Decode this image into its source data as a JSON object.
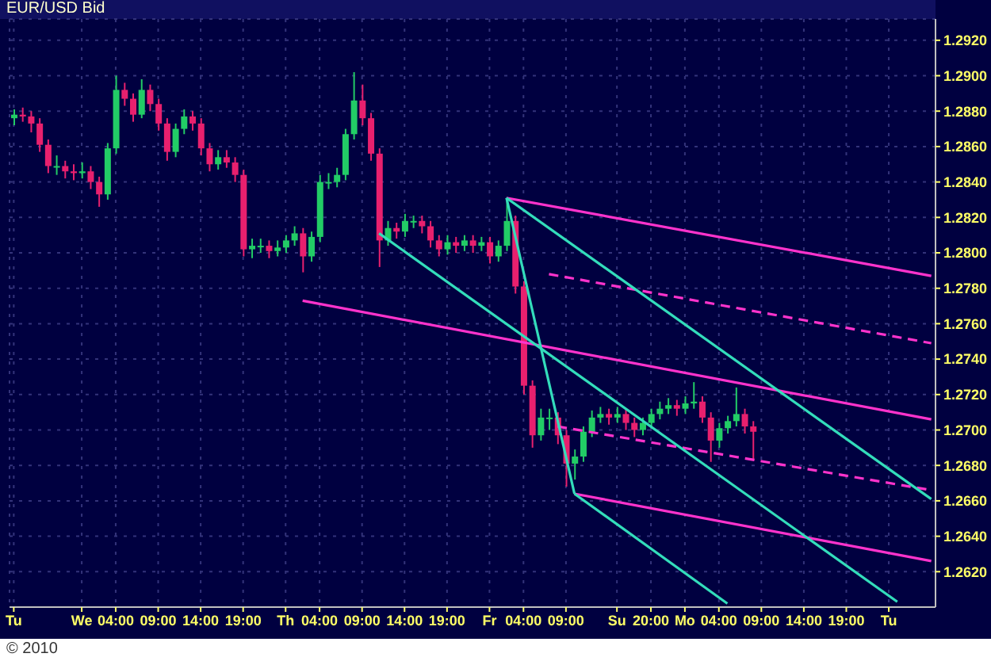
{
  "chart_data": {
    "type": "candlestick",
    "title": "EUR/USD Bid",
    "categories": [
      "Tu",
      null,
      null,
      null,
      null,
      null,
      null,
      null,
      "We",
      null,
      null,
      null,
      "04:00",
      null,
      null,
      null,
      null,
      "09:00",
      null,
      null,
      null,
      null,
      "14:00",
      null,
      null,
      null,
      null,
      "19:00",
      null,
      null,
      null,
      null,
      "Th",
      null,
      null,
      null,
      "04:00",
      null,
      null,
      null,
      null,
      "09:00",
      null,
      null,
      null,
      null,
      "14:00",
      null,
      null,
      null,
      null,
      "19:00",
      null,
      null,
      null,
      null,
      "Fr",
      null,
      null,
      null,
      "04:00",
      null,
      null,
      null,
      null,
      "09:00",
      null,
      null,
      null,
      null,
      null,
      "Su",
      null,
      null,
      null,
      "20:00",
      null,
      null,
      null,
      "Mo",
      null,
      null,
      null,
      "04:00",
      null,
      null,
      null,
      null,
      "09:00",
      null,
      null,
      null,
      null,
      "14:00",
      null,
      null,
      null,
      null,
      "19:00",
      null,
      null,
      null,
      null,
      "Tu",
      null,
      null,
      null,
      null,
      null
    ],
    "ohlc": [
      [
        1.2876,
        1.2881,
        1.2872,
        1.2878
      ],
      [
        1.2878,
        1.2882,
        1.2874,
        1.2877
      ],
      [
        1.2877,
        1.288,
        1.2868,
        1.2873
      ],
      [
        1.2873,
        1.2876,
        1.2857,
        1.2861
      ],
      [
        1.2861,
        1.2864,
        1.2845,
        1.2849
      ],
      [
        1.2849,
        1.2855,
        1.2844,
        1.2849
      ],
      [
        1.2849,
        1.2852,
        1.2842,
        1.2846
      ],
      [
        1.2846,
        1.285,
        1.2841,
        1.2845
      ],
      [
        1.2845,
        1.2851,
        1.2842,
        1.2846
      ],
      [
        1.2846,
        1.2849,
        1.2836,
        1.284
      ],
      [
        1.284,
        1.2843,
        1.2826,
        1.2833
      ],
      [
        1.2833,
        1.2862,
        1.283,
        1.2859
      ],
      [
        1.2859,
        1.29,
        1.2856,
        1.2892
      ],
      [
        1.2892,
        1.2896,
        1.2883,
        1.2887
      ],
      [
        1.2887,
        1.289,
        1.2874,
        1.2878
      ],
      [
        1.2878,
        1.2898,
        1.2876,
        1.2892
      ],
      [
        1.2892,
        1.2895,
        1.288,
        1.2884
      ],
      [
        1.2884,
        1.2887,
        1.2869,
        1.2873
      ],
      [
        1.2873,
        1.2876,
        1.2852,
        1.2857
      ],
      [
        1.2857,
        1.2873,
        1.2854,
        1.287
      ],
      [
        1.287,
        1.2881,
        1.2867,
        1.2877
      ],
      [
        1.2877,
        1.288,
        1.2869,
        1.2873
      ],
      [
        1.2873,
        1.2876,
        1.2855,
        1.2859
      ],
      [
        1.2859,
        1.2862,
        1.2846,
        1.285
      ],
      [
        1.285,
        1.2858,
        1.2847,
        1.2854
      ],
      [
        1.2854,
        1.2858,
        1.2848,
        1.2851
      ],
      [
        1.2851,
        1.2854,
        1.284,
        1.2844
      ],
      [
        1.2844,
        1.2847,
        1.2798,
        1.2802
      ],
      [
        1.2802,
        1.2808,
        1.2797,
        1.2804
      ],
      [
        1.2804,
        1.2808,
        1.28,
        1.2804
      ],
      [
        1.2804,
        1.2807,
        1.2797,
        1.2801
      ],
      [
        1.2801,
        1.2807,
        1.2798,
        1.2803
      ],
      [
        1.2803,
        1.281,
        1.28,
        1.2807
      ],
      [
        1.2807,
        1.2815,
        1.2804,
        1.2811
      ],
      [
        1.2811,
        1.2814,
        1.2789,
        1.2798
      ],
      [
        1.2798,
        1.2812,
        1.2795,
        1.2809
      ],
      [
        1.2809,
        1.2844,
        1.2806,
        1.284
      ],
      [
        1.284,
        1.2845,
        1.2836,
        1.284
      ],
      [
        1.284,
        1.2848,
        1.2837,
        1.2844
      ],
      [
        1.2844,
        1.287,
        1.2841,
        1.2867
      ],
      [
        1.2867,
        1.2902,
        1.2864,
        1.2886
      ],
      [
        1.2886,
        1.2895,
        1.2872,
        1.2876
      ],
      [
        1.2876,
        1.2879,
        1.2852,
        1.2856
      ],
      [
        1.2856,
        1.2859,
        1.2792,
        1.2807
      ],
      [
        1.2807,
        1.2818,
        1.2804,
        1.2814
      ],
      [
        1.2814,
        1.2817,
        1.2808,
        1.2812
      ],
      [
        1.2812,
        1.2822,
        1.2809,
        1.2818
      ],
      [
        1.2818,
        1.2821,
        1.2814,
        1.2818
      ],
      [
        1.2818,
        1.2821,
        1.2811,
        1.2815
      ],
      [
        1.2815,
        1.2818,
        1.2803,
        1.2807
      ],
      [
        1.2807,
        1.281,
        1.2798,
        1.2802
      ],
      [
        1.2802,
        1.281,
        1.2799,
        1.2806
      ],
      [
        1.2806,
        1.2809,
        1.28,
        1.2804
      ],
      [
        1.2804,
        1.281,
        1.2801,
        1.2807
      ],
      [
        1.2807,
        1.281,
        1.28,
        1.2804
      ],
      [
        1.2804,
        1.2809,
        1.2801,
        1.2806
      ],
      [
        1.2806,
        1.2809,
        1.2794,
        1.2798
      ],
      [
        1.2798,
        1.2807,
        1.2795,
        1.2804
      ],
      [
        1.2804,
        1.2831,
        1.2801,
        1.2818
      ],
      [
        1.2818,
        1.2821,
        1.2777,
        1.2781
      ],
      [
        1.2781,
        1.2784,
        1.272,
        1.2725
      ],
      [
        1.2725,
        1.2728,
        1.269,
        1.2697
      ],
      [
        1.2697,
        1.2712,
        1.2694,
        1.2707
      ],
      [
        1.2707,
        1.2712,
        1.27,
        1.2707
      ],
      [
        1.2707,
        1.271,
        1.2692,
        1.2697
      ],
      [
        1.2697,
        1.27,
        1.2668,
        1.2681
      ],
      [
        1.2681,
        1.2689,
        1.2672,
        1.2685
      ],
      [
        1.2685,
        1.2702,
        1.2682,
        1.2699
      ],
      [
        1.2699,
        1.2711,
        1.2696,
        1.2707
      ],
      [
        1.2707,
        1.2713,
        1.2704,
        1.2709
      ],
      [
        1.2709,
        1.2712,
        1.2703,
        1.2707
      ],
      [
        1.2707,
        1.2713,
        1.2704,
        1.2709
      ],
      [
        1.2709,
        1.2712,
        1.27,
        1.2704
      ],
      [
        1.2704,
        1.2707,
        1.2696,
        1.27
      ],
      [
        1.27,
        1.2707,
        1.2697,
        1.2704
      ],
      [
        1.2704,
        1.2712,
        1.2701,
        1.2709
      ],
      [
        1.2709,
        1.2716,
        1.2706,
        1.2712
      ],
      [
        1.2712,
        1.2718,
        1.2709,
        1.2714
      ],
      [
        1.2714,
        1.2717,
        1.2708,
        1.2712
      ],
      [
        1.2712,
        1.2719,
        1.2709,
        1.2715
      ],
      [
        1.2715,
        1.2727,
        1.2712,
        1.2716
      ],
      [
        1.2716,
        1.2719,
        1.2704,
        1.2707
      ],
      [
        1.2707,
        1.271,
        1.2682,
        1.2694
      ],
      [
        1.2694,
        1.2704,
        1.269,
        1.2701
      ],
      [
        1.2701,
        1.2708,
        1.2698,
        1.2705
      ],
      [
        1.2705,
        1.2724,
        1.2702,
        1.2709
      ],
      [
        1.2709,
        1.2712,
        1.2698,
        1.2702
      ],
      [
        1.2702,
        1.2705,
        1.2683,
        1.2699
      ],
      null,
      null,
      null,
      null,
      null,
      null,
      null,
      null,
      null,
      null,
      null,
      null,
      null,
      null,
      null,
      null,
      null,
      null,
      null,
      null,
      null
    ],
    "colors": [
      "#22cc66",
      "#e8206e",
      "#e8206e",
      "#e8206e",
      "#e8206e",
      "#22cc66",
      "#e8206e",
      "#e8206e",
      "#22cc66",
      "#e8206e",
      "#e8206e",
      "#22cc66",
      "#22cc66",
      "#e8206e",
      "#e8206e",
      "#22cc66",
      "#e8206e",
      "#e8206e",
      "#e8206e",
      "#22cc66",
      "#22cc66",
      "#e8206e",
      "#e8206e",
      "#e8206e",
      "#22cc66",
      "#e8206e",
      "#e8206e",
      "#e8206e",
      "#22cc66",
      "#22cc66",
      "#e8206e",
      "#22cc66",
      "#22cc66",
      "#22cc66",
      "#e8206e",
      "#22cc66",
      "#22cc66",
      "#22cc66",
      "#22cc66",
      "#22cc66",
      "#22cc66",
      "#e8206e",
      "#e8206e",
      "#e8206e",
      "#22cc66",
      "#e8206e",
      "#22cc66",
      "#22cc66",
      "#e8206e",
      "#e8206e",
      "#e8206e",
      "#22cc66",
      "#e8206e",
      "#22cc66",
      "#e8206e",
      "#22cc66",
      "#e8206e",
      "#22cc66",
      "#22cc66",
      "#e8206e",
      "#e8206e",
      "#e8206e",
      "#22cc66",
      "#22cc66",
      "#e8206e",
      "#e8206e",
      "#22cc66",
      "#22cc66",
      "#22cc66",
      "#22cc66",
      "#e8206e",
      "#22cc66",
      "#e8206e",
      "#e8206e",
      "#22cc66",
      "#22cc66",
      "#22cc66",
      "#22cc66",
      "#e8206e",
      "#22cc66",
      "#22cc66",
      "#e8206e",
      "#e8206e",
      "#22cc66",
      "#22cc66",
      "#22cc66",
      "#e8206e",
      "#e8206e",
      null,
      null,
      null,
      null,
      null,
      null,
      null,
      null,
      null,
      null,
      null,
      null,
      null,
      null,
      null,
      null,
      null,
      null,
      null,
      null,
      null
    ],
    "series": [
      {
        "type": "line",
        "color": "#ff33cc",
        "line_style": "solid",
        "values": [
          null,
          null,
          null,
          null,
          null,
          null,
          null,
          null,
          null,
          null,
          null,
          null,
          null,
          null,
          null,
          null,
          null,
          null,
          null,
          null,
          null,
          null,
          null,
          null,
          null,
          null,
          null,
          null,
          null,
          null,
          null,
          null,
          null,
          null,
          null,
          null,
          null,
          null,
          null,
          null,
          null,
          null,
          null,
          null,
          null,
          null,
          null,
          null,
          null,
          null,
          null,
          null,
          null,
          null,
          null,
          null,
          null,
          null,
          1.2831,
          null,
          null,
          null,
          null,
          null,
          null,
          null,
          null,
          null,
          null,
          null,
          null,
          null,
          null,
          null,
          null,
          null,
          null,
          null,
          null,
          null,
          null,
          null,
          null,
          null,
          null,
          null,
          null,
          null,
          null,
          null,
          null,
          null,
          null,
          null,
          null,
          null,
          null,
          null,
          null,
          null,
          null,
          null,
          null,
          null,
          null,
          null,
          null,
          null,
          1.2787
        ]
      },
      {
        "type": "line",
        "color": "#ff33cc",
        "line_style": "dashed",
        "values": [
          null,
          null,
          null,
          null,
          null,
          null,
          null,
          null,
          null,
          null,
          null,
          null,
          null,
          null,
          null,
          null,
          null,
          null,
          null,
          null,
          null,
          null,
          null,
          null,
          null,
          null,
          null,
          null,
          null,
          null,
          null,
          null,
          null,
          null,
          null,
          null,
          null,
          null,
          null,
          null,
          null,
          null,
          null,
          null,
          null,
          null,
          null,
          null,
          null,
          null,
          null,
          null,
          null,
          null,
          null,
          null,
          null,
          null,
          null,
          null,
          null,
          null,
          null,
          1.2788,
          null,
          null,
          null,
          null,
          null,
          null,
          null,
          null,
          null,
          null,
          null,
          null,
          null,
          null,
          null,
          null,
          null,
          null,
          null,
          null,
          null,
          null,
          null,
          null,
          null,
          null,
          null,
          null,
          null,
          null,
          null,
          null,
          null,
          null,
          null,
          null,
          null,
          null,
          null,
          null,
          null,
          null,
          null,
          null,
          1.2749
        ]
      },
      {
        "type": "line",
        "color": "#ff33cc",
        "line_style": "solid",
        "values": [
          null,
          null,
          null,
          null,
          null,
          null,
          null,
          null,
          null,
          null,
          null,
          null,
          null,
          null,
          null,
          null,
          null,
          null,
          null,
          null,
          null,
          null,
          null,
          null,
          null,
          null,
          null,
          null,
          null,
          null,
          null,
          null,
          null,
          null,
          1.2773,
          null,
          null,
          null,
          null,
          null,
          null,
          null,
          null,
          null,
          null,
          null,
          null,
          null,
          null,
          null,
          null,
          null,
          null,
          null,
          null,
          null,
          null,
          null,
          null,
          null,
          null,
          null,
          null,
          null,
          null,
          null,
          null,
          null,
          null,
          null,
          null,
          null,
          null,
          null,
          null,
          null,
          null,
          null,
          null,
          null,
          null,
          null,
          null,
          null,
          null,
          null,
          null,
          null,
          null,
          null,
          null,
          null,
          null,
          null,
          null,
          null,
          null,
          null,
          null,
          null,
          null,
          null,
          null,
          null,
          null,
          null,
          null,
          null,
          1.2706
        ]
      },
      {
        "type": "line",
        "color": "#ff33cc",
        "line_style": "dashed",
        "values": [
          null,
          null,
          null,
          null,
          null,
          null,
          null,
          null,
          null,
          null,
          null,
          null,
          null,
          null,
          null,
          null,
          null,
          null,
          null,
          null,
          null,
          null,
          null,
          null,
          null,
          null,
          null,
          null,
          null,
          null,
          null,
          null,
          null,
          null,
          null,
          null,
          null,
          null,
          null,
          null,
          null,
          null,
          null,
          null,
          null,
          null,
          null,
          null,
          null,
          null,
          null,
          null,
          null,
          null,
          null,
          null,
          null,
          null,
          null,
          null,
          null,
          null,
          null,
          null,
          1.2702,
          null,
          null,
          null,
          null,
          null,
          null,
          null,
          null,
          null,
          null,
          null,
          null,
          null,
          null,
          null,
          null,
          null,
          null,
          null,
          null,
          null,
          null,
          null,
          null,
          null,
          null,
          null,
          null,
          null,
          null,
          null,
          null,
          null,
          null,
          null,
          null,
          null,
          null,
          null,
          null,
          null,
          null,
          null,
          1.2666
        ]
      },
      {
        "type": "line",
        "color": "#ff33cc",
        "line_style": "solid",
        "values": [
          null,
          null,
          null,
          null,
          null,
          null,
          null,
          null,
          null,
          null,
          null,
          null,
          null,
          null,
          null,
          null,
          null,
          null,
          null,
          null,
          null,
          null,
          null,
          null,
          null,
          null,
          null,
          null,
          null,
          null,
          null,
          null,
          null,
          null,
          null,
          null,
          null,
          null,
          null,
          null,
          null,
          null,
          null,
          null,
          null,
          null,
          null,
          null,
          null,
          null,
          null,
          null,
          null,
          null,
          null,
          null,
          null,
          null,
          null,
          null,
          null,
          null,
          null,
          null,
          null,
          null,
          1.2664,
          null,
          null,
          null,
          null,
          null,
          null,
          null,
          null,
          null,
          null,
          null,
          null,
          null,
          null,
          null,
          null,
          null,
          null,
          null,
          null,
          null,
          null,
          null,
          null,
          null,
          null,
          null,
          null,
          null,
          null,
          null,
          null,
          null,
          null,
          null,
          null,
          null,
          null,
          null,
          null,
          null,
          1.2626
        ]
      },
      {
        "type": "line",
        "color": "#33ddbb",
        "line_style": "solid",
        "values": [
          null,
          null,
          null,
          null,
          null,
          null,
          null,
          null,
          null,
          null,
          null,
          null,
          null,
          null,
          null,
          null,
          null,
          null,
          null,
          null,
          null,
          null,
          null,
          null,
          null,
          null,
          null,
          null,
          null,
          null,
          null,
          null,
          null,
          null,
          null,
          null,
          null,
          null,
          null,
          null,
          null,
          null,
          null,
          null,
          null,
          null,
          null,
          null,
          null,
          null,
          null,
          null,
          null,
          null,
          null,
          null,
          null,
          null,
          1.2831,
          null,
          null,
          null,
          null,
          null,
          null,
          null,
          1.2664,
          null,
          null,
          null,
          null,
          null,
          null,
          null,
          null,
          null,
          null,
          null,
          null,
          null,
          null,
          null,
          null,
          null,
          null,
          null,
          null,
          null,
          null,
          null,
          null,
          null,
          null,
          null,
          null,
          null,
          null,
          null,
          null,
          null,
          null,
          null,
          null,
          null,
          null,
          null,
          null,
          null,
          null
        ]
      },
      {
        "type": "line",
        "color": "#33ddbb",
        "line_style": "solid",
        "values": [
          null,
          null,
          null,
          null,
          null,
          null,
          null,
          null,
          null,
          null,
          null,
          null,
          null,
          null,
          null,
          null,
          null,
          null,
          null,
          null,
          null,
          null,
          null,
          null,
          null,
          null,
          null,
          null,
          null,
          null,
          null,
          null,
          null,
          null,
          null,
          null,
          null,
          null,
          null,
          null,
          null,
          null,
          null,
          1.2811,
          null,
          null,
          null,
          null,
          null,
          null,
          null,
          null,
          null,
          null,
          null,
          null,
          null,
          null,
          null,
          null,
          null,
          null,
          null,
          null,
          null,
          null,
          null,
          null,
          null,
          null,
          null,
          null,
          null,
          null,
          null,
          null,
          null,
          null,
          null,
          null,
          null,
          null,
          null,
          null,
          null,
          null,
          null,
          null,
          null,
          null,
          null,
          null,
          null,
          null,
          null,
          null,
          null,
          null,
          null,
          null,
          null,
          null,
          null,
          null,
          1.2603,
          null,
          null,
          null,
          null
        ]
      },
      {
        "type": "line",
        "color": "#33ddbb",
        "line_style": "solid",
        "values": [
          null,
          null,
          null,
          null,
          null,
          null,
          null,
          null,
          null,
          null,
          null,
          null,
          null,
          null,
          null,
          null,
          null,
          null,
          null,
          null,
          null,
          null,
          null,
          null,
          null,
          null,
          null,
          null,
          null,
          null,
          null,
          null,
          null,
          null,
          null,
          null,
          null,
          null,
          null,
          null,
          null,
          null,
          null,
          null,
          null,
          null,
          null,
          null,
          null,
          null,
          null,
          null,
          null,
          null,
          null,
          null,
          null,
          null,
          1.2831,
          null,
          null,
          null,
          null,
          null,
          null,
          null,
          null,
          null,
          null,
          null,
          null,
          null,
          null,
          null,
          null,
          null,
          null,
          null,
          null,
          null,
          null,
          null,
          null,
          null,
          null,
          null,
          null,
          null,
          null,
          null,
          null,
          null,
          null,
          null,
          null,
          null,
          null,
          null,
          null,
          null,
          null,
          null,
          null,
          null,
          null,
          null,
          null,
          null,
          1.2661
        ]
      },
      {
        "type": "line",
        "color": "#33ddbb",
        "line_style": "solid",
        "values": [
          null,
          null,
          null,
          null,
          null,
          null,
          null,
          null,
          null,
          null,
          null,
          null,
          null,
          null,
          null,
          null,
          null,
          null,
          null,
          null,
          null,
          null,
          null,
          null,
          null,
          null,
          null,
          null,
          null,
          null,
          null,
          null,
          null,
          null,
          null,
          null,
          null,
          null,
          null,
          null,
          null,
          null,
          null,
          null,
          null,
          null,
          null,
          null,
          null,
          null,
          null,
          null,
          null,
          null,
          null,
          null,
          null,
          null,
          null,
          null,
          null,
          null,
          null,
          null,
          null,
          null,
          1.2664,
          null,
          null,
          null,
          null,
          null,
          null,
          null,
          null,
          null,
          null,
          null,
          null,
          null,
          null,
          null,
          null,
          null,
          1.2602,
          null,
          null,
          null,
          null,
          null,
          null,
          null,
          null,
          null,
          null,
          null,
          null,
          null,
          null,
          null,
          null,
          null,
          null,
          null,
          null,
          null,
          null,
          null,
          null
        ]
      }
    ],
    "ylim": [
      1.26,
      1.2932
    ],
    "yticks": [
      {
        "value": 1.262,
        "label": "1.2620"
      },
      {
        "value": 1.264,
        "label": "1.2640"
      },
      {
        "value": 1.266,
        "label": "1.2660"
      },
      {
        "value": 1.268,
        "label": "1.2680"
      },
      {
        "value": 1.27,
        "label": "1.2700"
      },
      {
        "value": 1.272,
        "label": "1.2720"
      },
      {
        "value": 1.274,
        "label": "1.2740"
      },
      {
        "value": 1.276,
        "label": "1.2760"
      },
      {
        "value": 1.278,
        "label": "1.2780"
      },
      {
        "value": 1.28,
        "label": "1.2800"
      },
      {
        "value": 1.282,
        "label": "1.2820"
      },
      {
        "value": 1.284,
        "label": "1.2840"
      },
      {
        "value": 1.286,
        "label": "1.2860"
      },
      {
        "value": 1.288,
        "label": "1.2880"
      },
      {
        "value": 1.29,
        "label": "1.2900"
      },
      {
        "value": 1.292,
        "label": "1.2920"
      }
    ],
    "grid": true,
    "annotations": [
      "© 2010"
    ]
  }
}
